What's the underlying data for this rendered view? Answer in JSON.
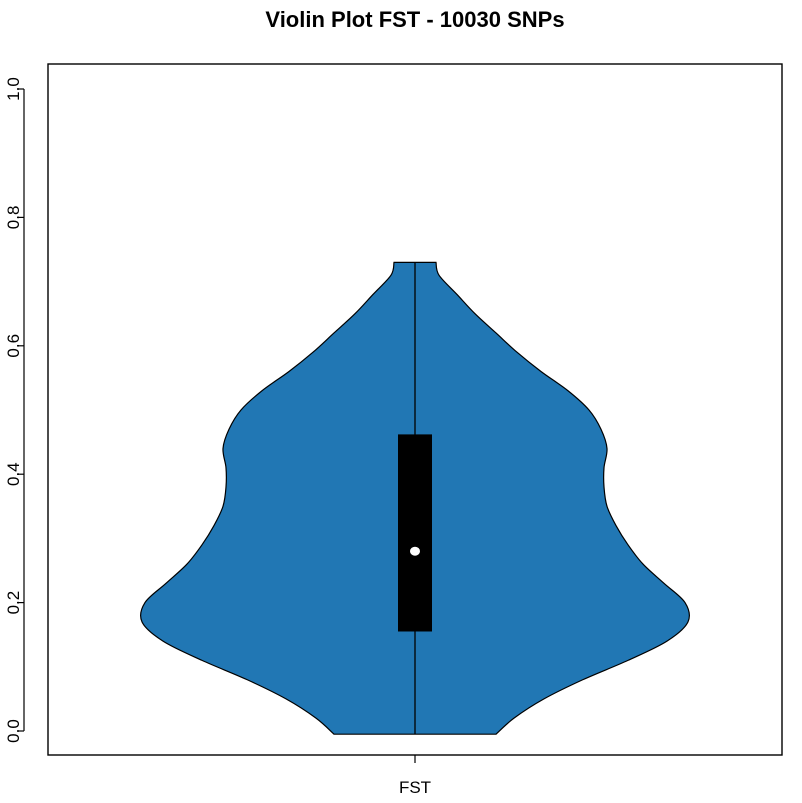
{
  "chart_data": {
    "type": "violin",
    "title": "Violin Plot FST - 10030 SNPs",
    "xlabel": "",
    "ylabel": "",
    "categories": [
      "FST"
    ],
    "ylim": [
      0.0,
      1.0
    ],
    "yticks": [
      "0.0",
      "0.2",
      "0.4",
      "0.6",
      "0.8",
      "1.0"
    ],
    "fill_color": "#2177b4",
    "box_color": "#000000",
    "median_color": "#ffffff",
    "grid": false,
    "legend": "none",
    "series": [
      {
        "category": "FST",
        "min": -0.005,
        "q1": 0.155,
        "median": 0.28,
        "q3": 0.462,
        "max": 0.73,
        "density_profile": [
          [
            -0.005,
            0.27
          ],
          [
            0.02,
            0.33
          ],
          [
            0.05,
            0.43
          ],
          [
            0.08,
            0.56
          ],
          [
            0.11,
            0.71
          ],
          [
            0.14,
            0.84
          ],
          [
            0.17,
            0.91
          ],
          [
            0.2,
            0.9
          ],
          [
            0.23,
            0.83
          ],
          [
            0.26,
            0.76
          ],
          [
            0.29,
            0.71
          ],
          [
            0.32,
            0.67
          ],
          [
            0.35,
            0.64
          ],
          [
            0.38,
            0.63
          ],
          [
            0.41,
            0.63
          ],
          [
            0.44,
            0.64
          ],
          [
            0.47,
            0.62
          ],
          [
            0.5,
            0.58
          ],
          [
            0.53,
            0.51
          ],
          [
            0.56,
            0.42
          ],
          [
            0.59,
            0.34
          ],
          [
            0.62,
            0.27
          ],
          [
            0.65,
            0.2
          ],
          [
            0.68,
            0.14
          ],
          [
            0.71,
            0.08
          ],
          [
            0.73,
            0.07
          ]
        ]
      }
    ]
  }
}
